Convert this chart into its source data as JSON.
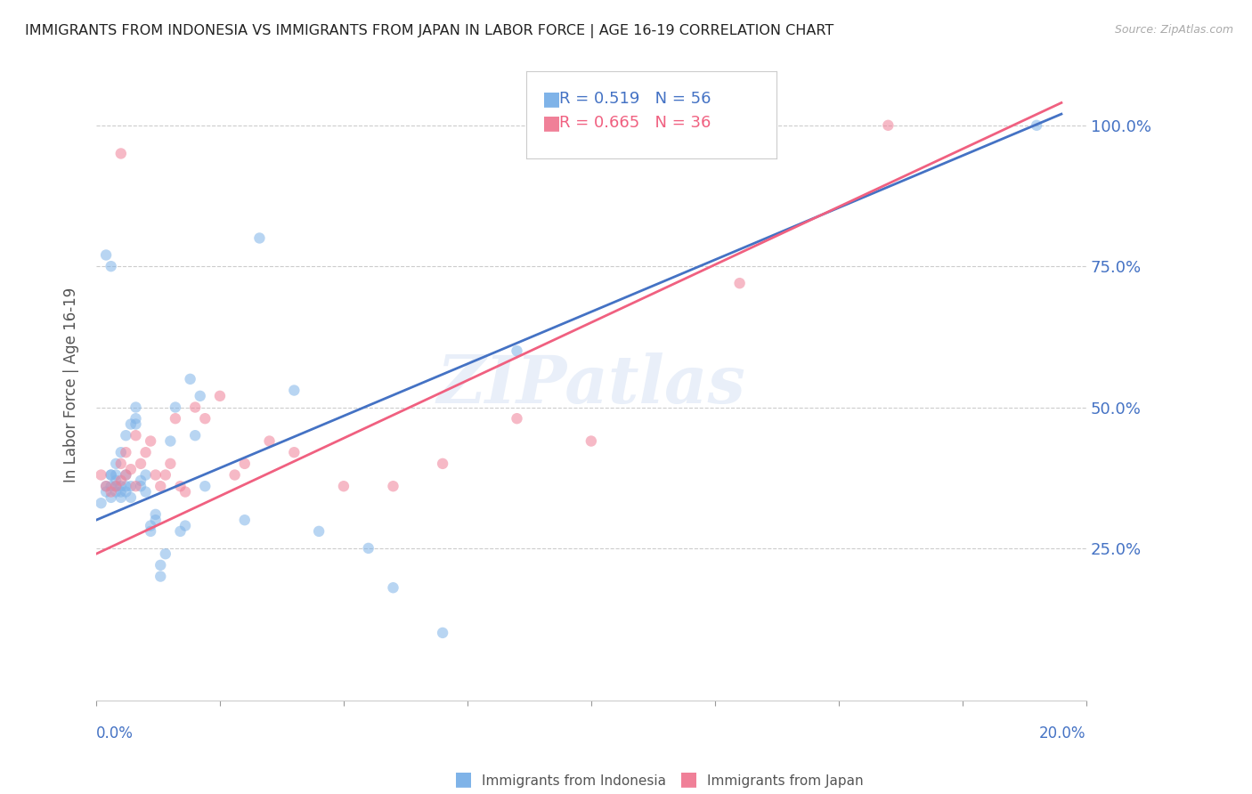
{
  "title": "IMMIGRANTS FROM INDONESIA VS IMMIGRANTS FROM JAPAN IN LABOR FORCE | AGE 16-19 CORRELATION CHART",
  "source": "Source: ZipAtlas.com",
  "ylabel": "In Labor Force | Age 16-19",
  "legend_entries": [
    {
      "label": "Immigrants from Indonesia",
      "R": "0.519",
      "N": "56"
    },
    {
      "label": "Immigrants from Japan",
      "R": "0.665",
      "N": "36"
    }
  ],
  "ytick_values": [
    0.25,
    0.5,
    0.75,
    1.0
  ],
  "xlim": [
    0.0,
    0.2
  ],
  "ylim": [
    -0.02,
    1.1
  ],
  "background_color": "#ffffff",
  "indonesia_scatter_x": [
    0.001,
    0.002,
    0.002,
    0.003,
    0.003,
    0.003,
    0.003,
    0.004,
    0.004,
    0.004,
    0.004,
    0.004,
    0.005,
    0.005,
    0.005,
    0.005,
    0.006,
    0.006,
    0.006,
    0.006,
    0.007,
    0.007,
    0.007,
    0.008,
    0.008,
    0.008,
    0.009,
    0.009,
    0.01,
    0.01,
    0.011,
    0.011,
    0.012,
    0.012,
    0.013,
    0.013,
    0.014,
    0.015,
    0.016,
    0.017,
    0.018,
    0.019,
    0.02,
    0.021,
    0.022,
    0.03,
    0.033,
    0.04,
    0.045,
    0.055,
    0.06,
    0.07,
    0.085,
    0.003,
    0.002,
    0.19
  ],
  "indonesia_scatter_y": [
    0.33,
    0.35,
    0.36,
    0.34,
    0.36,
    0.38,
    0.38,
    0.35,
    0.36,
    0.37,
    0.38,
    0.4,
    0.34,
    0.35,
    0.36,
    0.42,
    0.35,
    0.36,
    0.38,
    0.45,
    0.34,
    0.36,
    0.47,
    0.47,
    0.48,
    0.5,
    0.36,
    0.37,
    0.35,
    0.38,
    0.28,
    0.29,
    0.3,
    0.31,
    0.2,
    0.22,
    0.24,
    0.44,
    0.5,
    0.28,
    0.29,
    0.55,
    0.45,
    0.52,
    0.36,
    0.3,
    0.8,
    0.53,
    0.28,
    0.25,
    0.18,
    0.1,
    0.6,
    0.75,
    0.77,
    1.0
  ],
  "japan_scatter_x": [
    0.001,
    0.002,
    0.003,
    0.004,
    0.005,
    0.005,
    0.006,
    0.006,
    0.007,
    0.008,
    0.008,
    0.009,
    0.01,
    0.011,
    0.012,
    0.013,
    0.014,
    0.015,
    0.016,
    0.017,
    0.018,
    0.02,
    0.022,
    0.025,
    0.028,
    0.03,
    0.035,
    0.04,
    0.05,
    0.06,
    0.07,
    0.085,
    0.1,
    0.13,
    0.005,
    0.16
  ],
  "japan_scatter_y": [
    0.38,
    0.36,
    0.35,
    0.36,
    0.37,
    0.4,
    0.38,
    0.42,
    0.39,
    0.36,
    0.45,
    0.4,
    0.42,
    0.44,
    0.38,
    0.36,
    0.38,
    0.4,
    0.48,
    0.36,
    0.35,
    0.5,
    0.48,
    0.52,
    0.38,
    0.4,
    0.44,
    0.42,
    0.36,
    0.36,
    0.4,
    0.48,
    0.44,
    0.72,
    0.95,
    1.0
  ],
  "indonesia_line_x": [
    0.0,
    0.195
  ],
  "indonesia_line_y": [
    0.3,
    1.02
  ],
  "japan_line_x": [
    0.0,
    0.195
  ],
  "japan_line_y": [
    0.24,
    1.04
  ],
  "dot_color_indonesia": "#7fb3e8",
  "dot_color_japan": "#f08098",
  "line_color_indonesia": "#4472c4",
  "line_color_japan": "#f06080",
  "dot_alpha": 0.55,
  "dot_size": 80
}
